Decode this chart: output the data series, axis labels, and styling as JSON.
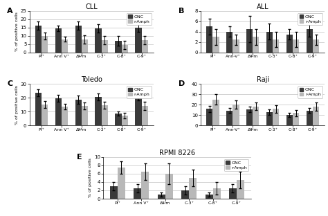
{
  "panels": [
    {
      "label": "A",
      "title": "CLL",
      "ylim": [
        0,
        25
      ],
      "yticks": [
        0,
        5,
        10,
        15,
        20,
        25
      ],
      "categories": [
        "PI⁺",
        "Ann V⁺",
        "ΔΨm",
        "C-3⁺",
        "C-8⁺",
        "C-9⁺"
      ],
      "onc_vals": [
        16.0,
        14.5,
        16.0,
        14.5,
        7.0,
        15.0
      ],
      "onc_err": [
        2.5,
        1.5,
        2.5,
        2.5,
        3.0,
        2.5
      ],
      "ramph_vals": [
        10.0,
        8.0,
        8.0,
        7.5,
        4.5,
        7.5
      ],
      "ramph_err": [
        2.0,
        1.5,
        2.5,
        2.5,
        2.5,
        2.5
      ]
    },
    {
      "label": "B",
      "title": "ALL",
      "ylim": [
        0,
        8
      ],
      "yticks": [
        0,
        2,
        4,
        6,
        8
      ],
      "categories": [
        "PI⁺",
        "Ann-V⁺",
        "ΔΨm",
        "C-3⁺",
        "C-8⁺",
        "C-9⁺"
      ],
      "onc_vals": [
        5.0,
        4.0,
        4.5,
        4.0,
        3.5,
        4.5
      ],
      "onc_err": [
        1.5,
        1.0,
        2.5,
        1.5,
        1.0,
        1.5
      ],
      "ramph_vals": [
        3.0,
        2.5,
        3.0,
        2.5,
        2.5,
        2.5
      ],
      "ramph_err": [
        1.5,
        1.0,
        1.5,
        1.5,
        1.5,
        1.0
      ]
    },
    {
      "label": "C",
      "title": "Toledo",
      "ylim": [
        0,
        30
      ],
      "yticks": [
        0,
        10,
        20,
        30
      ],
      "categories": [
        "PI⁺",
        "Ann V⁺",
        "ΔΨm",
        "C-3⁺",
        "C-8⁺",
        "C-9⁺"
      ],
      "onc_vals": [
        23.5,
        19.5,
        18.5,
        20.5,
        8.5,
        20.5
      ],
      "onc_err": [
        2.5,
        2.5,
        3.0,
        2.5,
        1.5,
        2.5
      ],
      "ramph_vals": [
        15.0,
        13.5,
        14.0,
        14.5,
        7.0,
        14.0
      ],
      "ramph_err": [
        2.5,
        2.0,
        2.5,
        2.5,
        2.0,
        3.0
      ]
    },
    {
      "label": "D",
      "title": "Raji",
      "ylim": [
        0,
        40
      ],
      "yticks": [
        0,
        10,
        20,
        30,
        40
      ],
      "categories": [
        "PI⁺",
        "Ann-V⁺",
        "ΔΨm",
        "C-3⁺",
        "C-8⁺",
        "C-9⁺"
      ],
      "onc_vals": [
        16.0,
        14.5,
        15.5,
        13.0,
        10.0,
        14.5
      ],
      "onc_err": [
        3.0,
        2.5,
        2.5,
        2.5,
        2.0,
        2.5
      ],
      "ramph_vals": [
        25.0,
        20.0,
        18.5,
        16.0,
        12.0,
        18.0
      ],
      "ramph_err": [
        5.0,
        4.0,
        3.5,
        3.5,
        3.0,
        4.0
      ]
    },
    {
      "label": "E",
      "title": "RPMI 8226",
      "ylim": [
        0,
        10
      ],
      "yticks": [
        0,
        2,
        4,
        6,
        8,
        10
      ],
      "categories": [
        "PI⁺",
        "Ann V⁺",
        "ΔΨm",
        "C-3⁺",
        "C-8⁺",
        "C-9⁺"
      ],
      "onc_vals": [
        3.0,
        2.5,
        1.0,
        2.0,
        1.0,
        2.5
      ],
      "onc_err": [
        1.0,
        1.0,
        0.5,
        1.0,
        0.5,
        1.0
      ],
      "ramph_vals": [
        7.5,
        6.5,
        6.0,
        5.0,
        2.5,
        4.5
      ],
      "ramph_err": [
        1.5,
        2.0,
        2.5,
        2.0,
        1.5,
        2.0
      ]
    }
  ],
  "onc_color": "#3a3a3a",
  "ramph_color": "#b8b8b8",
  "ylabel": "% of positive cells",
  "grid_color": "#cccccc",
  "background_color": "#ffffff"
}
